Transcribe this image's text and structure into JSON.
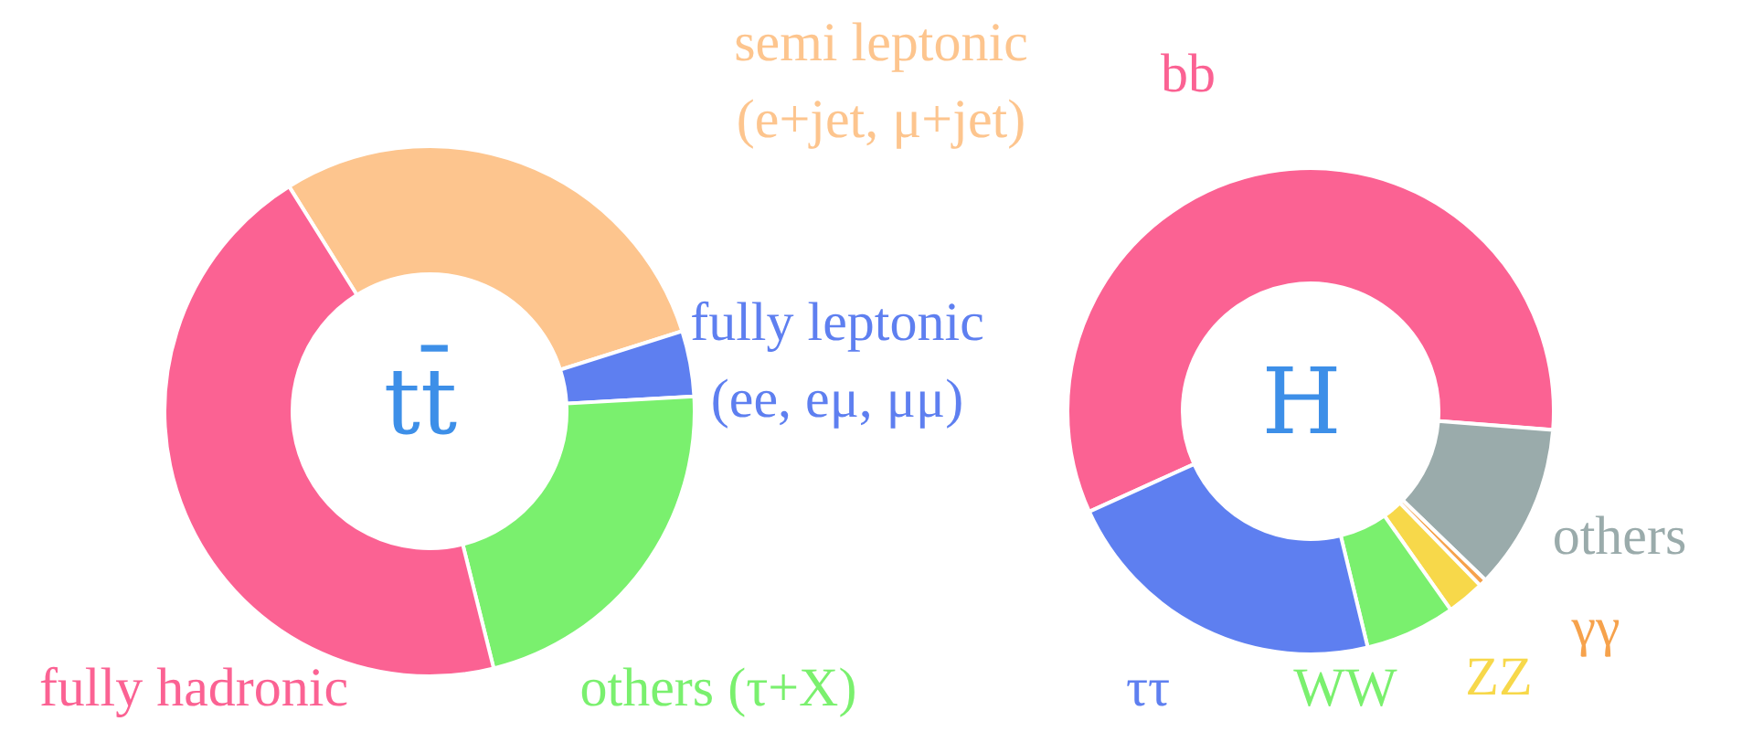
{
  "chart_data": [
    {
      "type": "donut",
      "title": "tt̄",
      "categories": [
        "semi leptonic (e+jet, μ+jet)",
        "fully leptonic (ee, eμ, μμ)",
        "others (τ+X)",
        "fully hadronic"
      ],
      "values": [
        29,
        4,
        22,
        45
      ],
      "colors": [
        "#fdc58e",
        "#5e7ff0",
        "#7af06e",
        "#fb6293"
      ]
    },
    {
      "type": "donut",
      "title": "H",
      "categories": [
        "bb",
        "others",
        "γγ",
        "ZZ",
        "WW",
        "ττ"
      ],
      "values": [
        58,
        11,
        0.5,
        2.5,
        6,
        22
      ],
      "colors": [
        "#fb6293",
        "#9aabab",
        "#f6a24c",
        "#f7d84a",
        "#7af06e",
        "#5e7ff0"
      ]
    }
  ]
}
